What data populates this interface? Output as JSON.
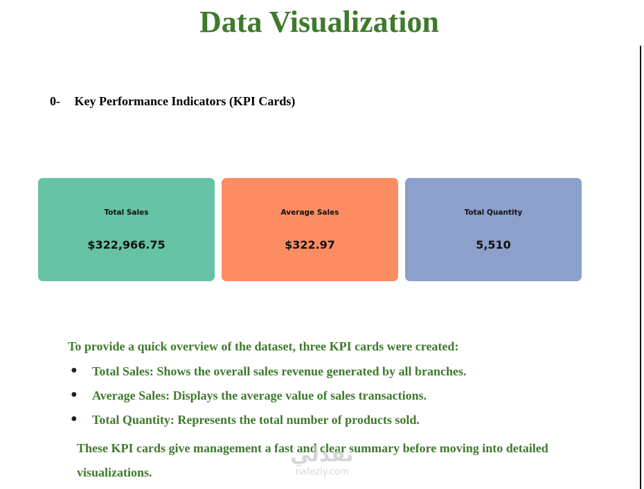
{
  "title": "Data Visualization",
  "section": {
    "number": "0-",
    "heading": "Key Performance Indicators (KPI Cards)"
  },
  "kpi_cards": [
    {
      "label": "Total Sales",
      "value": "$322,966.75",
      "color": "#66c2a5"
    },
    {
      "label": "Average Sales",
      "value": "$322.97",
      "color": "#fc8d62"
    },
    {
      "label": "Total Quantity",
      "value": "5,510",
      "color": "#8da0cb"
    }
  ],
  "intro": "To provide a quick overview of the dataset, three KPI cards were created:",
  "bullets": [
    "Total Sales: Shows the overall sales revenue generated by all branches.",
    "Average Sales: Displays the average value of sales transactions.",
    "Total Quantity: Represents the total number of products sold."
  ],
  "summary": "These KPI cards give management a fast and clear summary before moving into detailed visualizations.",
  "watermark": {
    "logo": "نفذلي",
    "url": "nafezly.com"
  }
}
